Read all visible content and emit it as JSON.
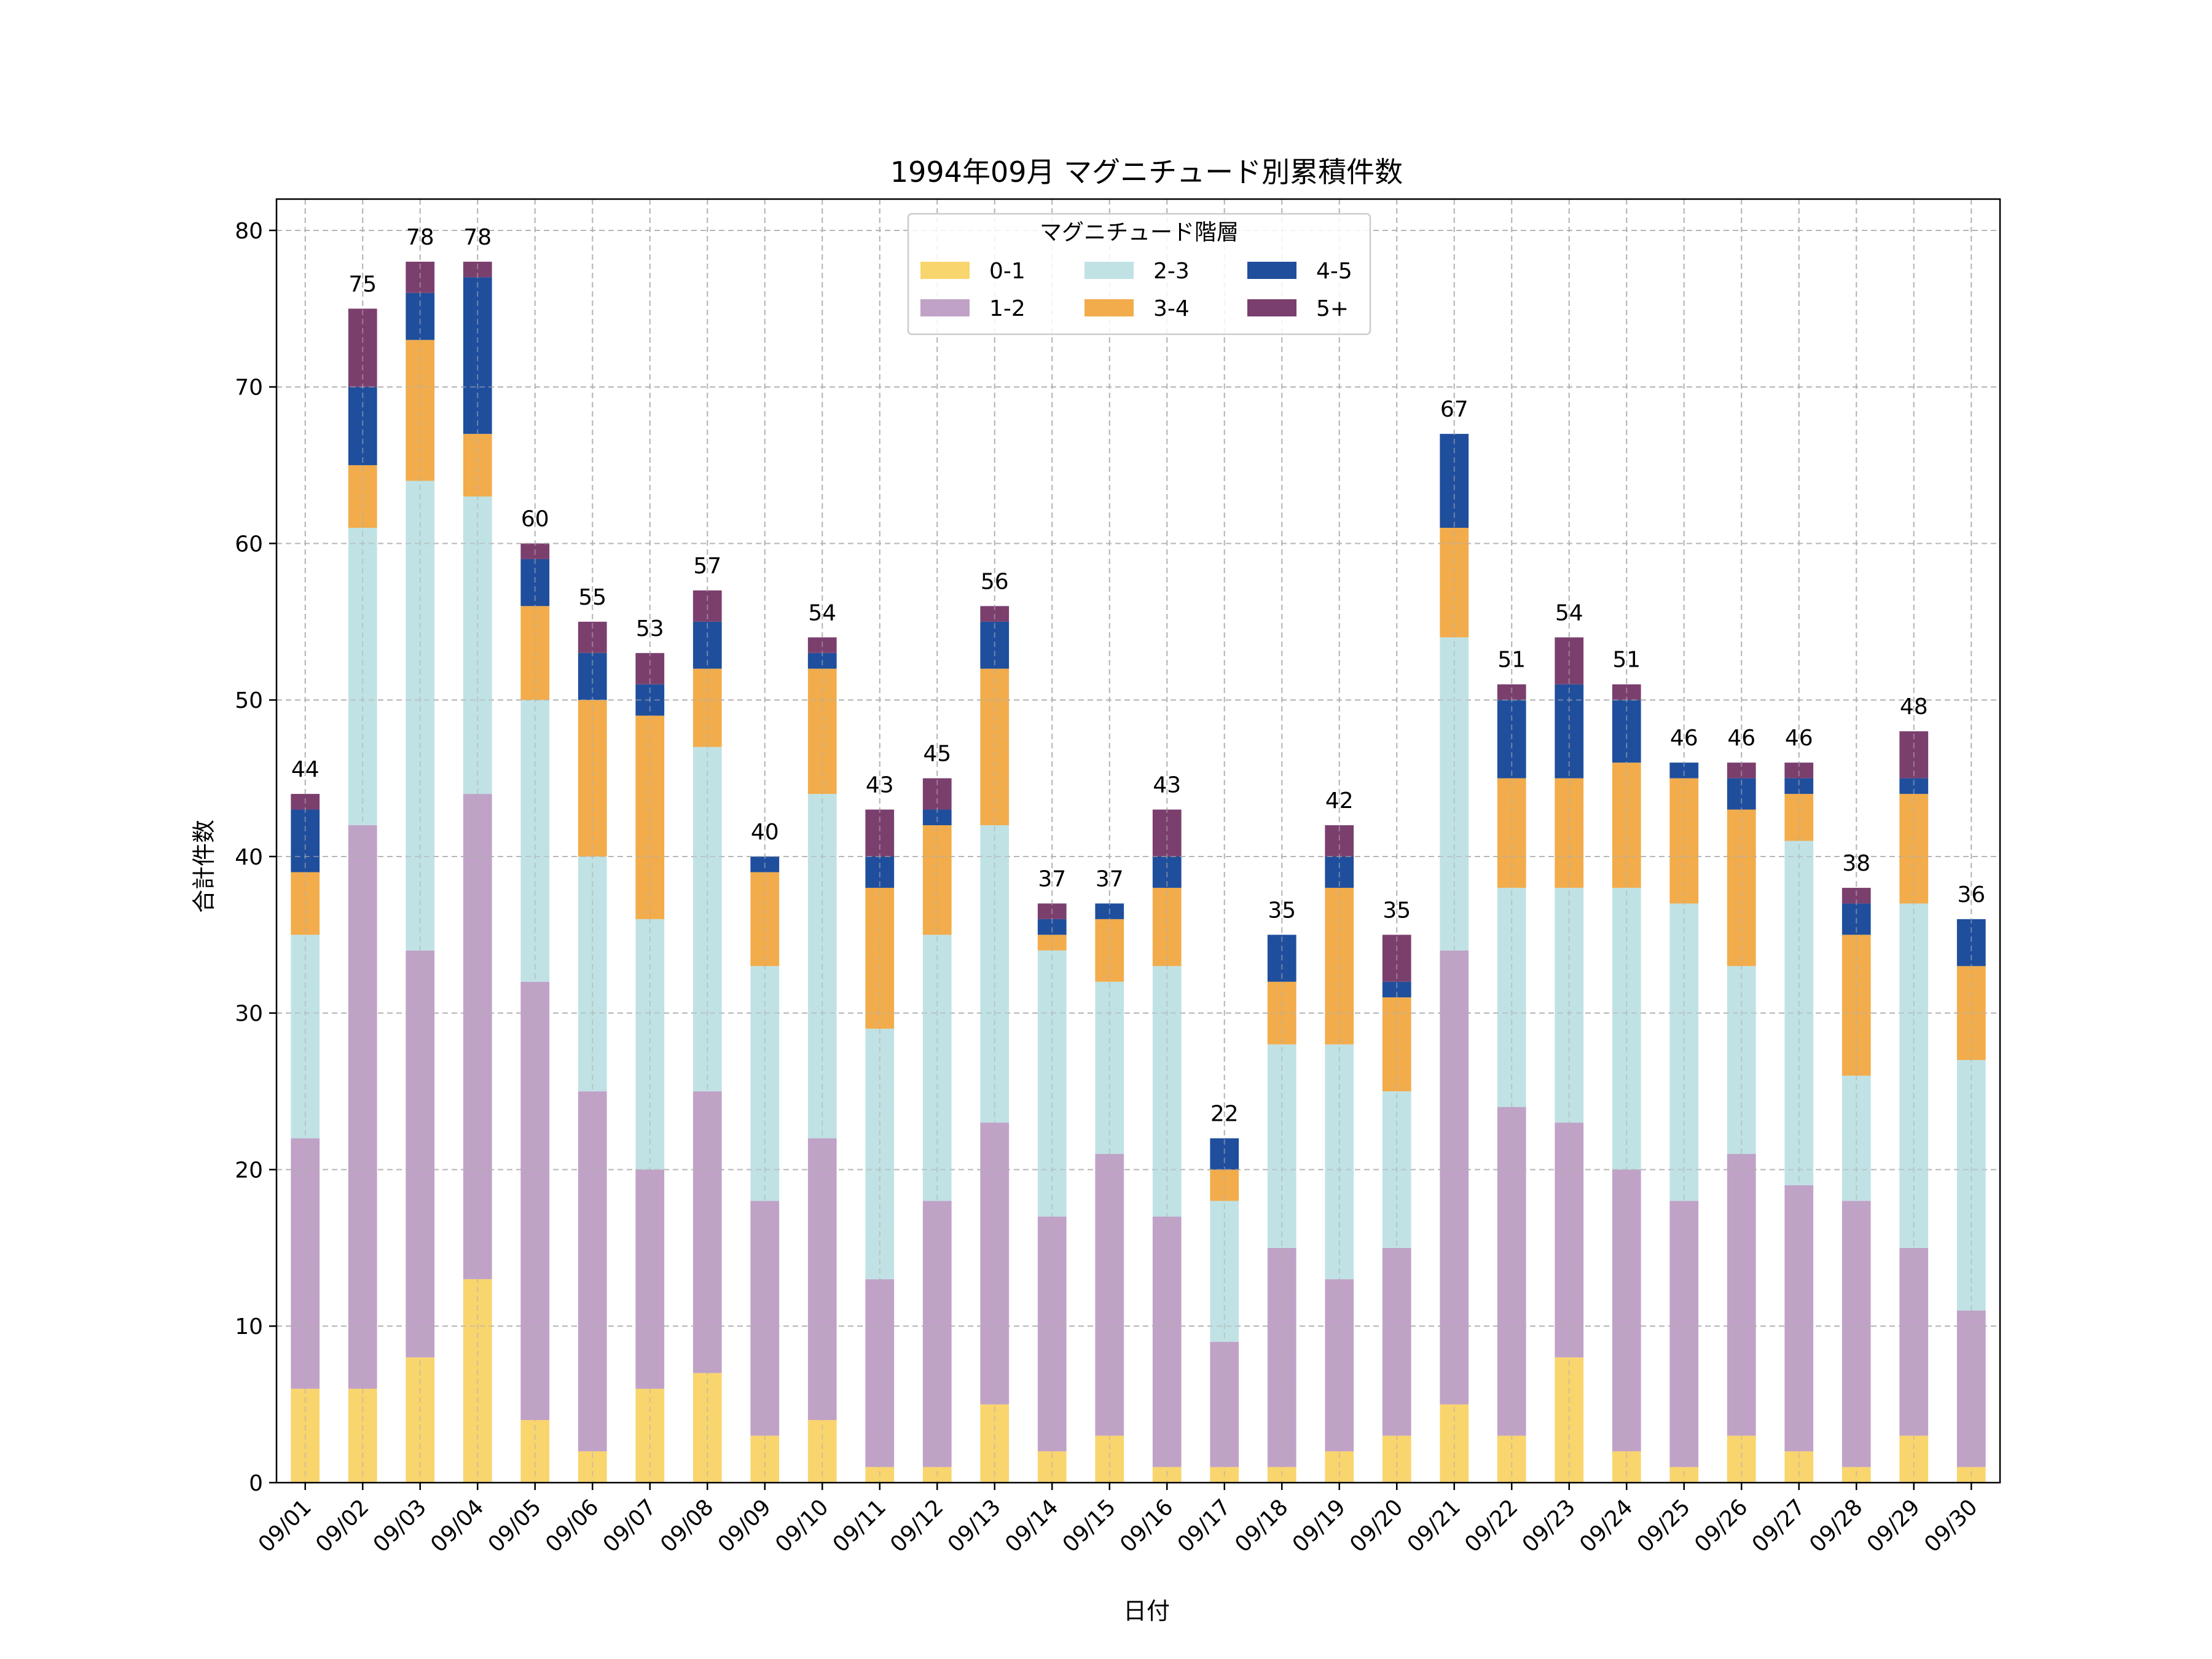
{
  "chart_data": {
    "type": "bar",
    "stacked": true,
    "title": "1994年09月 マグニチュード別累積件数",
    "xlabel": "日付",
    "ylabel": "合計件数",
    "ylim": [
      0,
      82
    ],
    "yticks": [
      0,
      10,
      20,
      30,
      40,
      50,
      60,
      70,
      80
    ],
    "grid": true,
    "legend": {
      "title": "マグニチュード階層",
      "placement": "top-center",
      "columns": 3
    },
    "categories": [
      "09/01",
      "09/02",
      "09/03",
      "09/04",
      "09/05",
      "09/06",
      "09/07",
      "09/08",
      "09/09",
      "09/10",
      "09/11",
      "09/12",
      "09/13",
      "09/14",
      "09/15",
      "09/16",
      "09/17",
      "09/18",
      "09/19",
      "09/20",
      "09/21",
      "09/22",
      "09/23",
      "09/24",
      "09/25",
      "09/26",
      "09/27",
      "09/28",
      "09/29",
      "09/30"
    ],
    "series": [
      {
        "name": "0-1",
        "color": "#f9d56e",
        "values": [
          6,
          6,
          8,
          13,
          4,
          2,
          6,
          7,
          3,
          4,
          1,
          1,
          5,
          2,
          3,
          1,
          1,
          1,
          2,
          3,
          5,
          3,
          8,
          2,
          1,
          3,
          2,
          1,
          3,
          1
        ]
      },
      {
        "name": "1-2",
        "color": "#c0a2c7",
        "values": [
          16,
          36,
          26,
          31,
          28,
          23,
          14,
          18,
          15,
          18,
          12,
          17,
          18,
          15,
          18,
          16,
          8,
          14,
          11,
          12,
          29,
          21,
          15,
          18,
          17,
          18,
          17,
          17,
          12,
          10
        ]
      },
      {
        "name": "2-3",
        "color": "#c0e2e5",
        "values": [
          13,
          19,
          30,
          19,
          18,
          15,
          16,
          22,
          15,
          22,
          16,
          17,
          19,
          17,
          11,
          16,
          9,
          13,
          15,
          10,
          20,
          14,
          15,
          18,
          19,
          12,
          22,
          8,
          22,
          16
        ]
      },
      {
        "name": "3-4",
        "color": "#f2ac4b",
        "values": [
          4,
          4,
          9,
          4,
          6,
          10,
          13,
          5,
          6,
          8,
          9,
          7,
          10,
          1,
          4,
          5,
          2,
          4,
          10,
          6,
          7,
          7,
          7,
          8,
          8,
          10,
          3,
          9,
          7,
          6
        ]
      },
      {
        "name": "4-5",
        "color": "#1f4e9d",
        "values": [
          4,
          5,
          3,
          10,
          3,
          3,
          2,
          3,
          1,
          1,
          2,
          1,
          3,
          1,
          1,
          2,
          2,
          3,
          2,
          1,
          6,
          5,
          6,
          4,
          1,
          2,
          1,
          2,
          1,
          3
        ]
      },
      {
        "name": "5+",
        "color": "#7b3f6e",
        "values": [
          1,
          5,
          2,
          1,
          1,
          2,
          2,
          2,
          0,
          1,
          3,
          2,
          1,
          1,
          0,
          3,
          0,
          0,
          2,
          3,
          0,
          1,
          3,
          1,
          0,
          1,
          1,
          1,
          3,
          0
        ]
      }
    ],
    "totals": [
      44,
      75,
      78,
      78,
      60,
      55,
      53,
      57,
      40,
      54,
      43,
      45,
      56,
      37,
      37,
      43,
      22,
      35,
      42,
      35,
      67,
      51,
      54,
      51,
      46,
      46,
      46,
      38,
      48,
      36
    ]
  }
}
